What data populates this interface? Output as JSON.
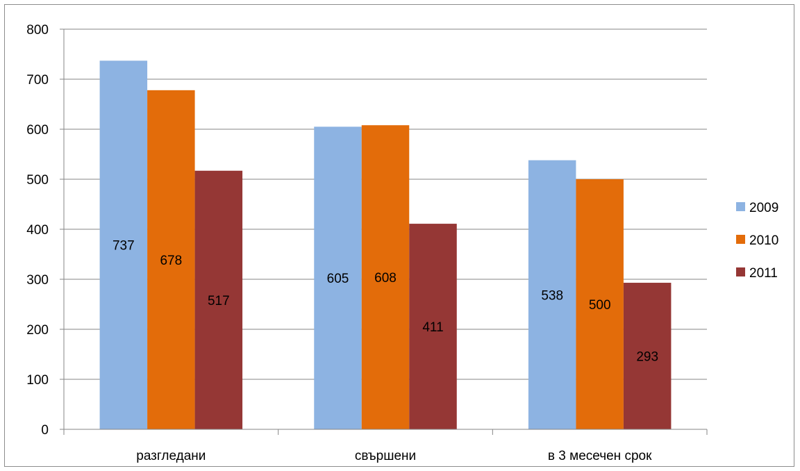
{
  "chart_data": {
    "type": "bar",
    "categories": [
      "разгледани",
      "свършени",
      "в 3 месечен срок"
    ],
    "series": [
      {
        "name": "2009",
        "values": [
          737,
          605,
          538
        ],
        "color": "#8DB3E2"
      },
      {
        "name": "2010",
        "values": [
          678,
          608,
          500
        ],
        "color": "#E36C0A"
      },
      {
        "name": "2011",
        "values": [
          517,
          411,
          293
        ],
        "color": "#953735"
      }
    ],
    "ylim": [
      0,
      800
    ],
    "yticks": [
      0,
      100,
      200,
      300,
      400,
      500,
      600,
      700,
      800
    ],
    "grid": true,
    "legend": "right",
    "data_labels": "center"
  }
}
